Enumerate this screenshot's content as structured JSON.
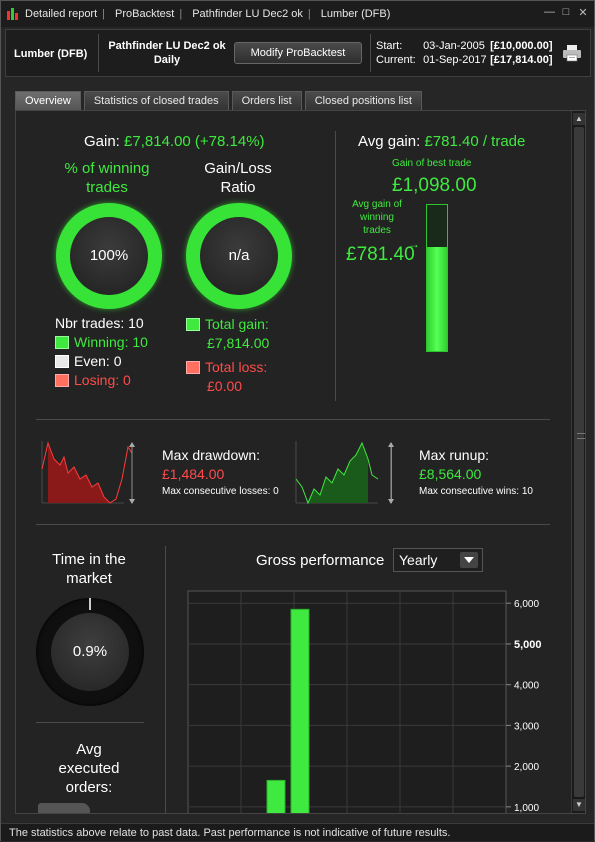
{
  "titlebar": {
    "crumbs": [
      "Detailed report",
      "ProBacktest",
      "Pathfinder LU Dec2 ok",
      "Lumber (DFB)"
    ],
    "controls": [
      "—",
      "□",
      "✕"
    ]
  },
  "header": {
    "instrument": "Lumber (DFB)",
    "strategy_name": "Pathfinder LU Dec2 ok",
    "timeframe": "Daily",
    "modify_label": "Modify ProBacktest",
    "start_label": "Start:",
    "start_date": "03-Jan-2005",
    "start_value": "[£10,000.00]",
    "current_label": "Current:",
    "current_date": "01-Sep-2017",
    "current_value": "[£17,814.00]"
  },
  "tabs": [
    "Overview",
    "Statistics of closed trades",
    "Orders list",
    "Closed positions list"
  ],
  "overview": {
    "gain_label": "Gain:",
    "gain_value": "£7,814.00 (+78.14%)",
    "pct_winning_label_1": "% of winning",
    "pct_winning_label_2": "trades",
    "pct_winning_value": "100%",
    "pct_winning_fraction": 1.0,
    "gl_ratio_label_1": "Gain/Loss",
    "gl_ratio_label_2": "Ratio",
    "gl_ratio_value": "n/a",
    "nbr_trades_label": "Nbr trades: 10",
    "winning_label": "Winning: 10",
    "even_label": "Even: 0",
    "losing_label": "Losing: 0",
    "total_gain_label": "Total gain:",
    "total_gain_value": "£7,814.00",
    "total_loss_label": "Total loss:",
    "total_loss_value": "£0.00",
    "avg_gain_label": "Avg gain:",
    "avg_gain_value": "£781.40 / trade",
    "best_trade_label": "Gain of best trade",
    "best_trade_value": "£1,098.00",
    "avg_winning_label_1": "Avg gain of",
    "avg_winning_label_2": "winning",
    "avg_winning_label_3": "trades",
    "avg_winning_value": "£781.40",
    "avg_vs_best_fraction": 0.7117,
    "max_drawdown_label": "Max drawdown:",
    "max_drawdown_value": "£1,484.00",
    "max_consec_losses": "Max consecutive losses: 0",
    "max_runup_label": "Max runup:",
    "max_runup_value": "£8,564.00",
    "max_consec_wins": "Max consecutive wins: 10",
    "time_market_label_1": "Time in the",
    "time_market_label_2": "market",
    "time_market_value": "0.9%",
    "time_market_fraction": 0.009,
    "avg_exec_label_1": "Avg",
    "avg_exec_label_2": "executed",
    "avg_exec_label_3": "orders:",
    "gross_perf_label": "Gross performance",
    "gross_perf_period": "Yearly"
  },
  "colors": {
    "green": "#3fe93f",
    "red": "#ff4b4b",
    "gray_swatch": "#e8e8e8"
  },
  "footer": "The statistics above relate to past data. Past performance is not indicative of future results.",
  "chart_data": {
    "type": "bar",
    "title": "Gross performance",
    "ylim": [
      800,
      6300
    ],
    "yticks": [
      "6,000",
      "5,000",
      "4,000",
      "3,000",
      "2,000",
      "1,000"
    ],
    "ytick_values": [
      6000,
      5000,
      4000,
      3000,
      2000,
      1000
    ],
    "series": [
      {
        "values": [
          1650,
          5850
        ]
      }
    ]
  }
}
